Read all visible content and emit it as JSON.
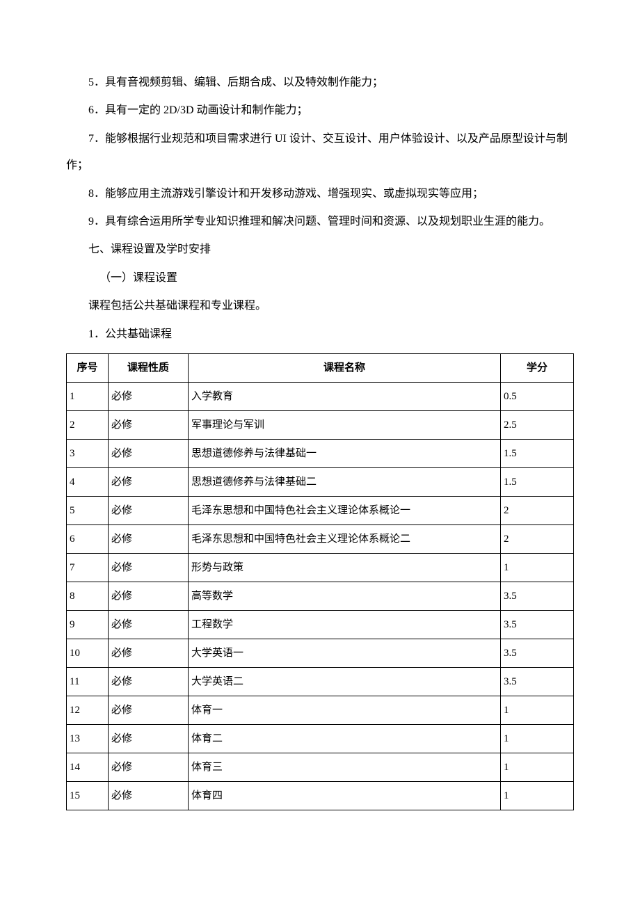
{
  "paragraphs": {
    "p5": "5．具有音视频剪辑、编辑、后期合成、以及特效制作能力；",
    "p6": "6．具有一定的 2D/3D 动画设计和制作能力；",
    "p7": "7．能够根据行业规范和项目需求进行 UI 设计、交互设计、用户体验设计、以及产品原型设计与制作；",
    "p8": "8．能够应用主流游戏引擎设计和开发移动游戏、增强现实、或虚拟现实等应用；",
    "p9": "9．具有综合运用所学专业知识推理和解决问题、管理时间和资源、以及规划职业生涯的能力。",
    "section7": "七、课程设置及学时安排",
    "sub1": "（一）课程设置",
    "desc": "课程包括公共基础课程和专业课程。",
    "sub_num": "1．公共基础课程"
  },
  "table": {
    "headers": {
      "seq": "序号",
      "type": "课程性质",
      "name": "课程名称",
      "credit": "学分"
    },
    "rows": [
      {
        "seq": "1",
        "type": "必修",
        "name": "入学教育",
        "credit": "0.5"
      },
      {
        "seq": "2",
        "type": "必修",
        "name": "军事理论与军训",
        "credit": "2.5"
      },
      {
        "seq": "3",
        "type": "必修",
        "name": "思想道德修养与法律基础一",
        "credit": "1.5"
      },
      {
        "seq": "4",
        "type": "必修",
        "name": "思想道德修养与法律基础二",
        "credit": "1.5"
      },
      {
        "seq": "5",
        "type": "必修",
        "name": "毛泽东思想和中国特色社会主义理论体系概论一",
        "credit": "2"
      },
      {
        "seq": "6",
        "type": "必修",
        "name": "毛泽东思想和中国特色社会主义理论体系概论二",
        "credit": "2"
      },
      {
        "seq": "7",
        "type": "必修",
        "name": "形势与政策",
        "credit": "1"
      },
      {
        "seq": "8",
        "type": "必修",
        "name": "高等数学",
        "credit": "3.5"
      },
      {
        "seq": "9",
        "type": "必修",
        "name": "工程数学",
        "credit": "3.5"
      },
      {
        "seq": "10",
        "type": "必修",
        "name": "大学英语一",
        "credit": "3.5"
      },
      {
        "seq": "11",
        "type": "必修",
        "name": "大学英语二",
        "credit": "3.5"
      },
      {
        "seq": "12",
        "type": "必修",
        "name": "体育一",
        "credit": "1"
      },
      {
        "seq": "13",
        "type": "必修",
        "name": "体育二",
        "credit": "1"
      },
      {
        "seq": "14",
        "type": "必修",
        "name": "体育三",
        "credit": "1"
      },
      {
        "seq": "15",
        "type": "必修",
        "name": "体育四",
        "credit": "1"
      }
    ]
  }
}
